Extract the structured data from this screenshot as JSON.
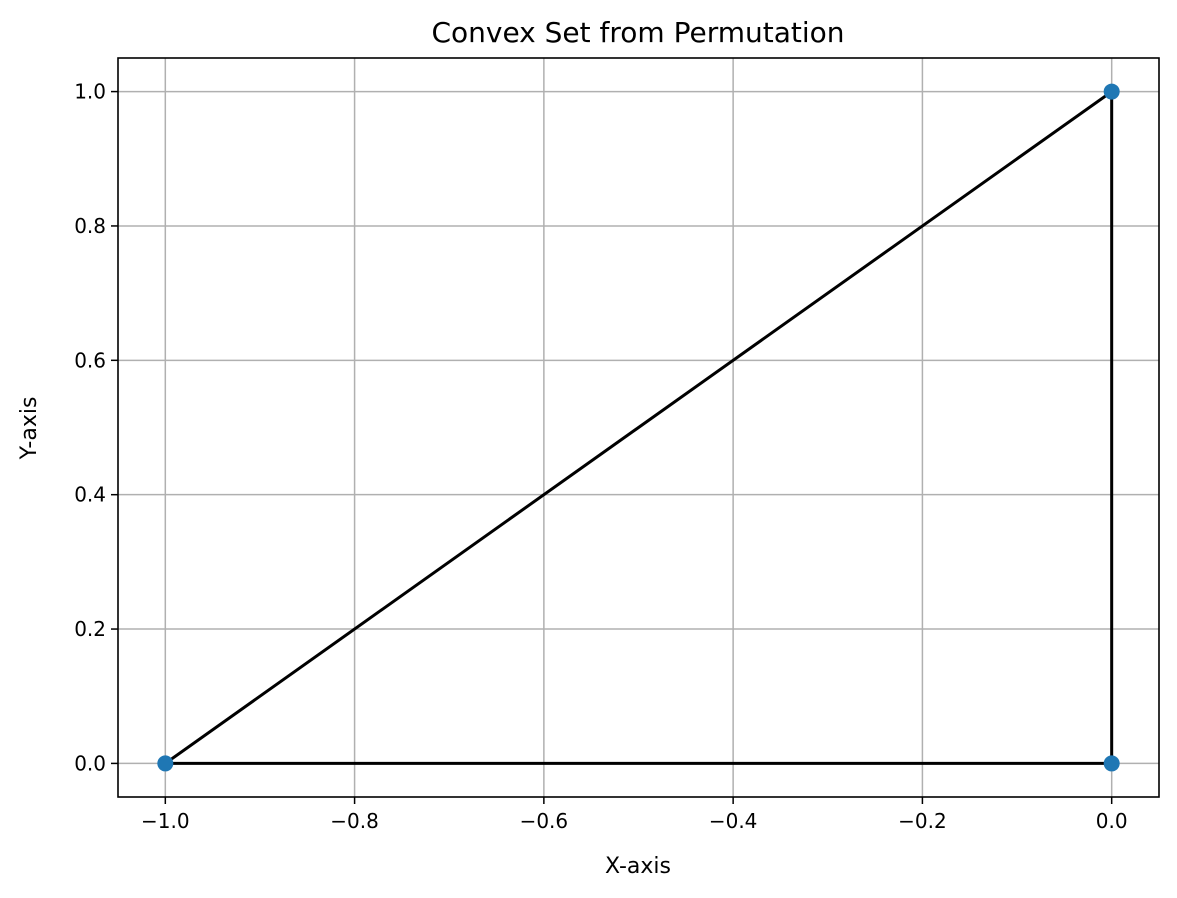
{
  "chart_data": {
    "type": "line",
    "title": "Convex Set from Permutation",
    "xlabel": "X-axis",
    "ylabel": "Y-axis",
    "xlim": [
      -1.05,
      0.05
    ],
    "ylim": [
      -0.05,
      1.05
    ],
    "x_ticks": [
      -1.0,
      -0.8,
      -0.6,
      -0.4,
      -0.2,
      0.0
    ],
    "x_tick_labels": [
      "−1.0",
      "−0.8",
      "−0.6",
      "−0.4",
      "−0.2",
      "0.0"
    ],
    "y_ticks": [
      0.0,
      0.2,
      0.4,
      0.6,
      0.8,
      1.0
    ],
    "y_tick_labels": [
      "0.0",
      "0.2",
      "0.4",
      "0.6",
      "0.8",
      "1.0"
    ],
    "grid": true,
    "points": [
      {
        "x": -1.0,
        "y": 0.0
      },
      {
        "x": 0.0,
        "y": 0.0
      },
      {
        "x": 0.0,
        "y": 1.0
      }
    ],
    "hull": [
      {
        "x": -1.0,
        "y": 0.0
      },
      {
        "x": 0.0,
        "y": 0.0
      },
      {
        "x": 0.0,
        "y": 1.0
      },
      {
        "x": -1.0,
        "y": 0.0
      }
    ],
    "point_color": "#1f77b4",
    "line_color": "#000000"
  }
}
